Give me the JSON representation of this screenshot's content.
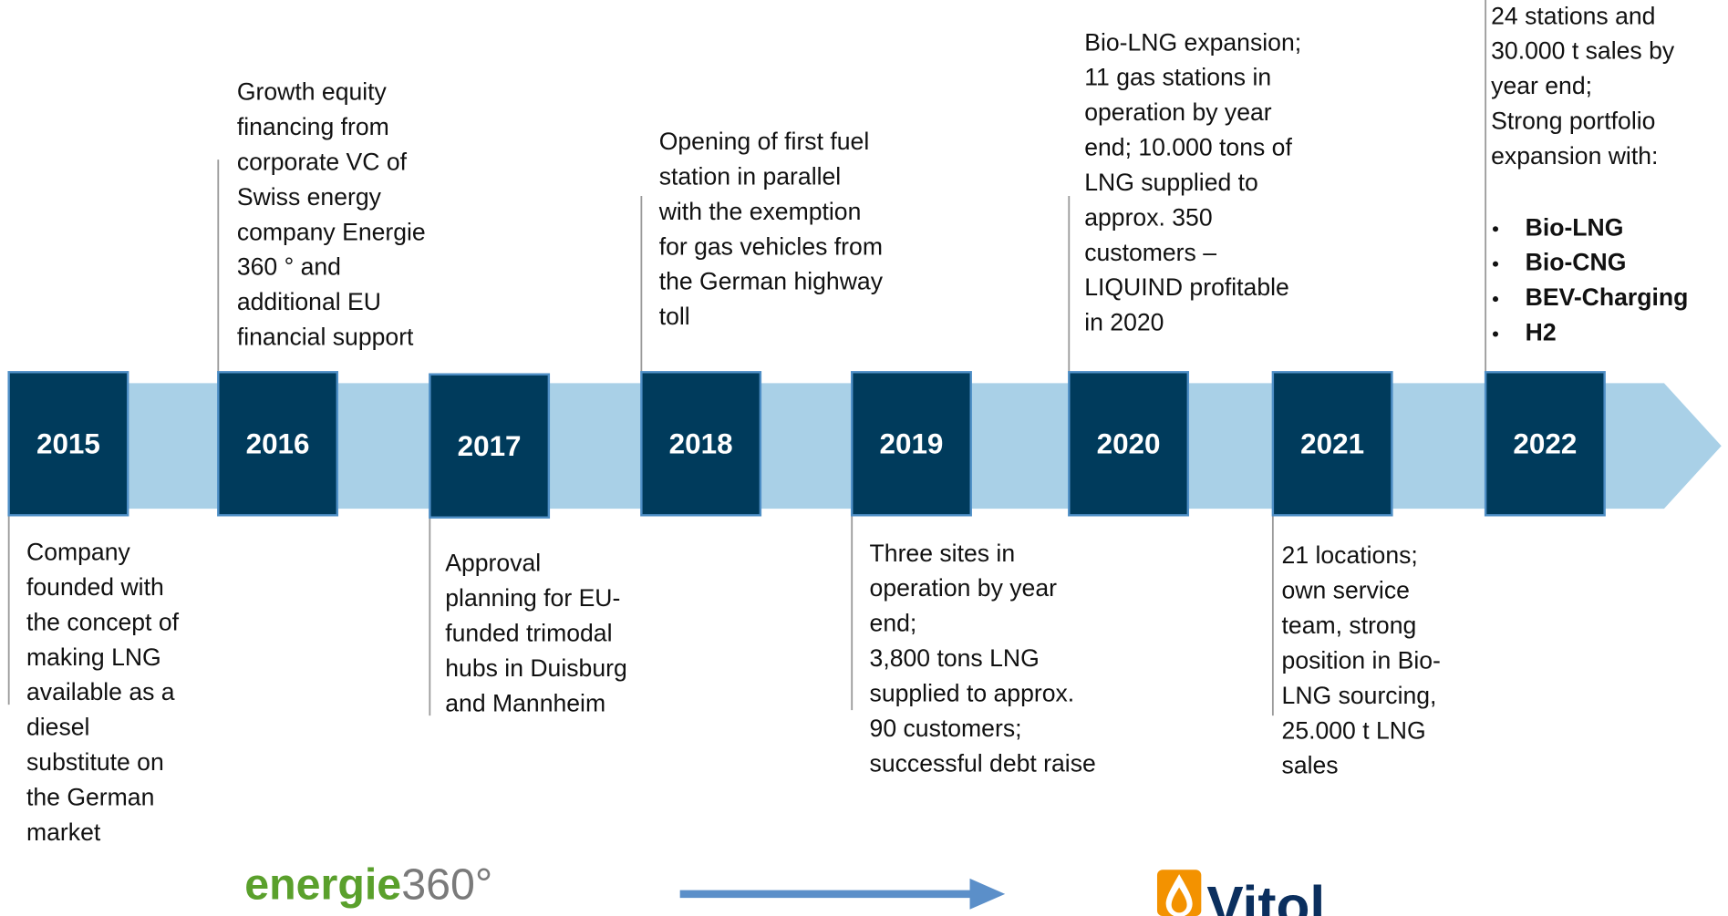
{
  "timeline": [
    {
      "year": "2015",
      "text": [
        "Company",
        "founded with",
        "the concept of",
        "making LNG",
        "available as a",
        "diesel",
        "substitute on",
        "the German",
        "market"
      ]
    },
    {
      "year": "2016",
      "text": [
        "Growth equity",
        "financing from",
        "corporate VC of",
        "Swiss energy",
        "company Energie",
        "360 ° and",
        "additional EU",
        "financial support"
      ]
    },
    {
      "year": "2017",
      "text": [
        "Approval",
        "planning for EU-",
        "funded trimodal",
        "hubs in Duisburg",
        "and Mannheim"
      ]
    },
    {
      "year": "2018",
      "text": [
        "Opening of first fuel",
        "station in parallel",
        "with the exemption",
        "for gas vehicles from",
        "the German highway",
        "toll"
      ]
    },
    {
      "year": "2019",
      "text": [
        "Three sites in",
        "operation by year",
        "end;",
        "3,800 tons LNG",
        "supplied to approx.",
        "90 customers;",
        "successful debt raise"
      ]
    },
    {
      "year": "2020",
      "text": [
        "Bio-LNG expansion;",
        "11 gas stations in",
        "operation by year",
        "end; 10.000 tons of",
        "LNG supplied to",
        "approx. 350",
        "customers –",
        "LIQUIND profitable",
        "in 2020"
      ]
    },
    {
      "year": "2021",
      "text": [
        "21 locations;",
        "own service",
        "team, strong",
        "position in Bio-",
        "LNG sourcing,",
        "25.000 t LNG",
        "sales"
      ]
    },
    {
      "year": "2022",
      "text": [
        "24 stations and",
        "30.000 t sales by",
        "year end;",
        "Strong portfolio",
        "expansion with:"
      ],
      "bullets": [
        "Bio-LNG",
        "Bio-CNG",
        "BEV-Charging",
        "H2"
      ]
    }
  ],
  "logos": {
    "left": {
      "word": "energie",
      "number": "360°"
    },
    "right": "Vitol"
  }
}
